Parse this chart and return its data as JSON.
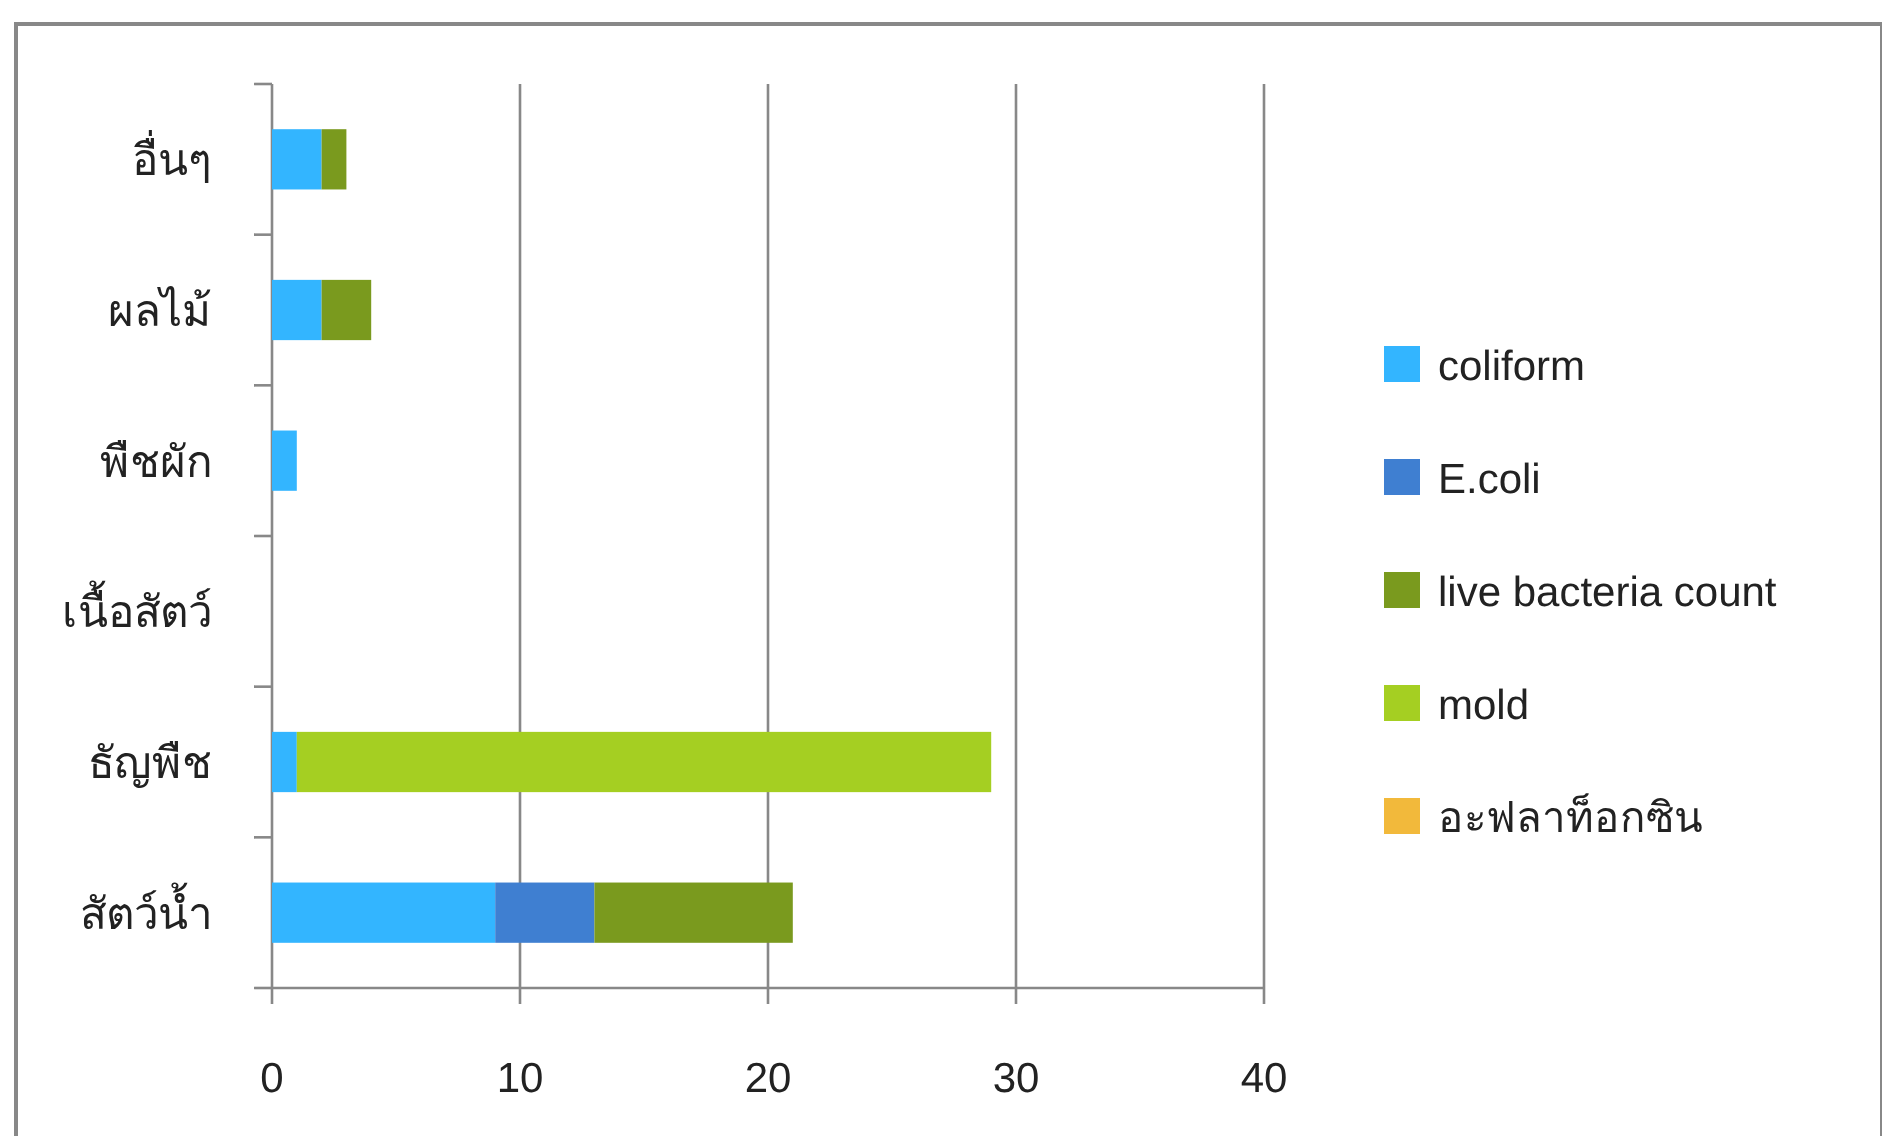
{
  "chart_data": {
    "type": "bar",
    "orientation": "horizontal",
    "stacked": true,
    "categories": [
      "อื่นๆ",
      "ผลไม้",
      "พืชผัก",
      "เนื้อสัตว์",
      "ธัญพืช",
      "สัตว์น้ำ"
    ],
    "series": [
      {
        "name": "coliform",
        "color": "#33b5ff",
        "values": [
          2,
          2,
          1,
          0,
          1,
          9
        ]
      },
      {
        "name": "E.coli",
        "color": "#3f7fd1",
        "values": [
          0,
          0,
          0,
          0,
          0,
          4
        ]
      },
      {
        "name": "live bacteria count",
        "color": "#7a9a1e",
        "values": [
          1,
          2,
          0,
          0,
          0,
          8
        ]
      },
      {
        "name": "mold",
        "color": "#a5cf22",
        "values": [
          0,
          0,
          0,
          0,
          28,
          0
        ]
      },
      {
        "name": "อะฟลาท็อกซิน",
        "color": "#f2b93b",
        "values": [
          0,
          0,
          0,
          0,
          0,
          0
        ]
      }
    ],
    "xlim": [
      0,
      40
    ],
    "xticks": [
      0,
      10,
      20,
      30,
      40
    ],
    "grid": "x",
    "legend": "right"
  }
}
